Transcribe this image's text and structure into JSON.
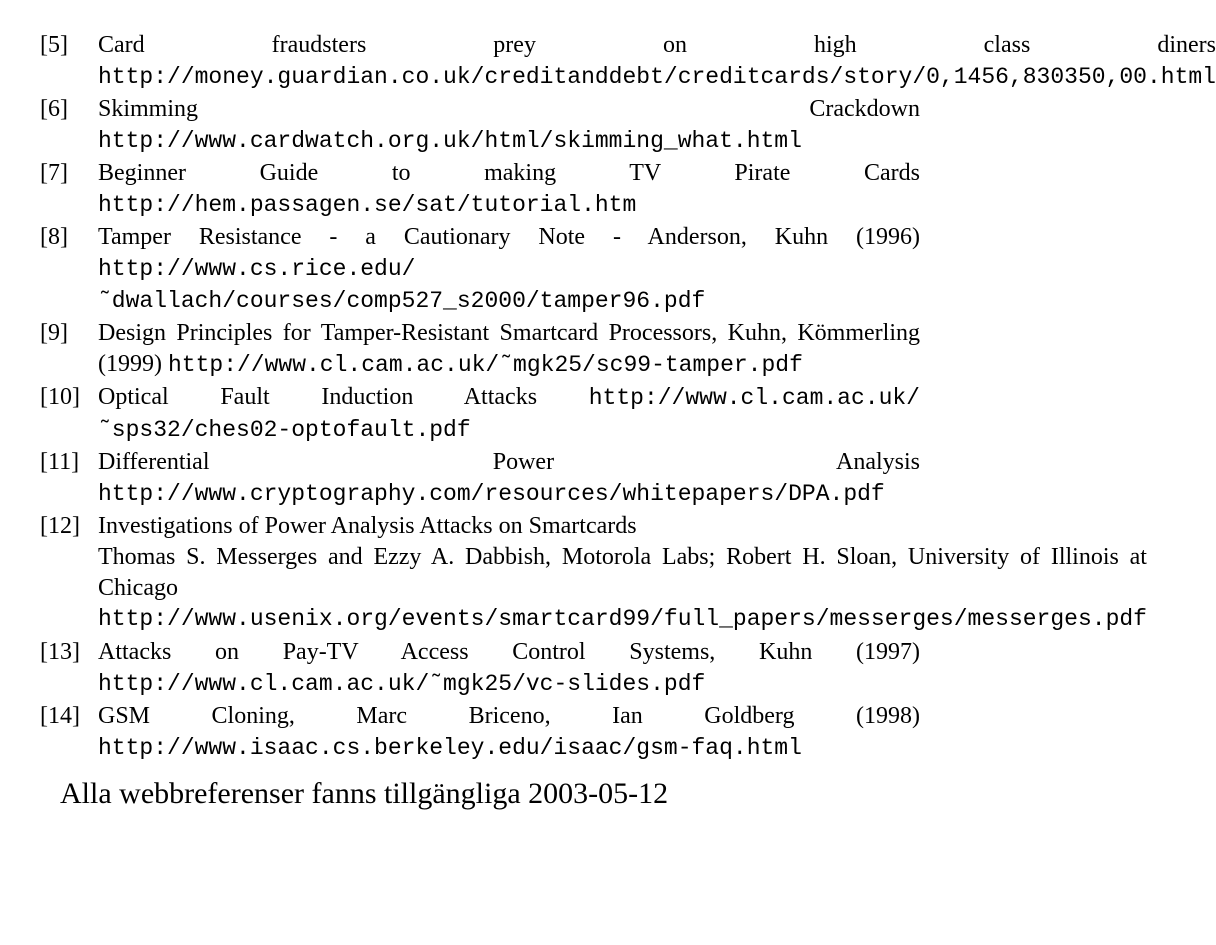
{
  "references": [
    {
      "num": "[5]",
      "parts": [
        {
          "t": "Card fraudsters prey on high class diners ",
          "mono": false
        },
        {
          "t": "http://money.guardian.co.uk/creditanddebt/creditcards/story/0,1456,830350,00.html",
          "mono": true
        }
      ]
    },
    {
      "num": "[6]",
      "parts": [
        {
          "t": "Skimming Crackdown ",
          "mono": false
        },
        {
          "t": "http://www.cardwatch.org.uk/html/skimming_what.html",
          "mono": true
        }
      ]
    },
    {
      "num": "[7]",
      "parts": [
        {
          "t": "Beginner Guide to making TV Pirate Cards ",
          "mono": false
        },
        {
          "t": "http://hem.passagen.se/sat/tutorial.htm",
          "mono": true
        }
      ]
    },
    {
      "num": "[8]",
      "parts": [
        {
          "t": "Tamper Resistance - a Cautionary Note - Anderson, Kuhn (1996) ",
          "mono": false
        },
        {
          "t": "http://www.cs.rice.edu/˜dwallach/courses/comp527_s2000/tamper96.pdf",
          "mono": true
        }
      ]
    },
    {
      "num": "[9]",
      "parts": [
        {
          "t": "Design Principles for Tamper-Resistant Smartcard Processors, Kuhn, Kömmerling (1999) ",
          "mono": false
        },
        {
          "t": "http://www.cl.cam.ac.uk/˜mgk25/sc99-tamper.pdf",
          "mono": true
        }
      ]
    },
    {
      "num": "[10]",
      "parts": [
        {
          "t": "Optical Fault Induction Attacks ",
          "mono": false
        },
        {
          "t": "http://www.cl.cam.ac.uk/˜sps32/ches02-optofault.pdf",
          "mono": true
        }
      ]
    },
    {
      "num": "[11]",
      "parts": [
        {
          "t": "Differential Power Analysis ",
          "mono": false
        },
        {
          "t": "http://www.cryptography.com/resources/whitepapers/DPA.pdf",
          "mono": true
        }
      ]
    },
    {
      "num": "[12]",
      "parts": [
        {
          "t": "Investigations of Power Analysis Attacks on Smartcards",
          "mono": false,
          "br": true
        },
        {
          "t": "Thomas S. Messerges and Ezzy A. Dabbish, Motorola Labs; Robert H. Sloan, University of Illinois at Chicago ",
          "mono": false
        },
        {
          "t": "http://www.usenix.org/events/smartcard99/full_papers/messerges/messerges.pdf",
          "mono": true
        }
      ]
    },
    {
      "num": "[13]",
      "parts": [
        {
          "t": "Attacks on Pay-TV Access Control Systems, Kuhn (1997) ",
          "mono": false
        },
        {
          "t": "http://www.cl.cam.ac.uk/˜mgk25/vc-slides.pdf",
          "mono": true
        }
      ]
    },
    {
      "num": "[14]",
      "parts": [
        {
          "t": "GSM Cloning, Marc Briceno, Ian Goldberg (1998) ",
          "mono": false
        },
        {
          "t": "http://www.isaac.cs.berkeley.edu/isaac/gsm-faq.html",
          "mono": true
        }
      ]
    }
  ],
  "footer": "Alla webbreferenser fanns tillgängliga 2003-05-12"
}
